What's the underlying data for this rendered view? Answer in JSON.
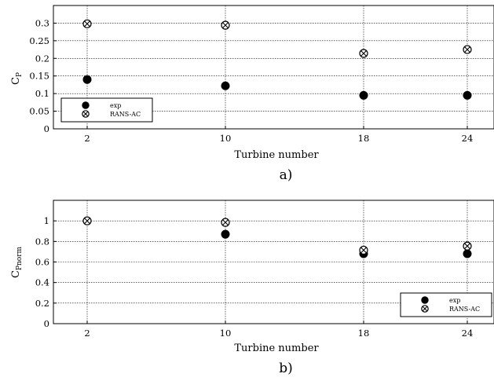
{
  "chart_data": [
    {
      "type": "scatter",
      "panel_label": "a)",
      "xlabel": "Turbine number",
      "ylabel": "C",
      "ylabel_sub": "P",
      "categories": [
        "2",
        "10",
        "18",
        "24"
      ],
      "ylim": [
        0,
        0.35
      ],
      "yticks": [
        "0",
        "0.05",
        "0.1",
        "0.15",
        "0.2",
        "0.25",
        "0.3"
      ],
      "grid": true,
      "legend_position": "lower-left",
      "series": [
        {
          "name": "exp",
          "marker": "filled-circle",
          "values": [
            0.14,
            0.122,
            0.095,
            0.095
          ]
        },
        {
          "name": "RANS-AC",
          "marker": "circle-x",
          "values": [
            0.298,
            0.294,
            0.214,
            0.225
          ]
        }
      ]
    },
    {
      "type": "scatter",
      "panel_label": "b)",
      "xlabel": "Turbine number",
      "ylabel": "C",
      "ylabel_sub": "Pnorm",
      "categories": [
        "2",
        "10",
        "18",
        "24"
      ],
      "ylim": [
        0,
        1.2
      ],
      "yticks": [
        "0",
        "0.2",
        "0.4",
        "0.6",
        "0.8",
        "1"
      ],
      "grid": true,
      "legend_position": "lower-right",
      "series": [
        {
          "name": "exp",
          "marker": "filled-circle",
          "values": [
            1.0,
            0.87,
            0.68,
            0.68
          ]
        },
        {
          "name": "RANS-AC",
          "marker": "circle-x",
          "values": [
            1.0,
            0.985,
            0.715,
            0.755
          ]
        }
      ]
    }
  ]
}
